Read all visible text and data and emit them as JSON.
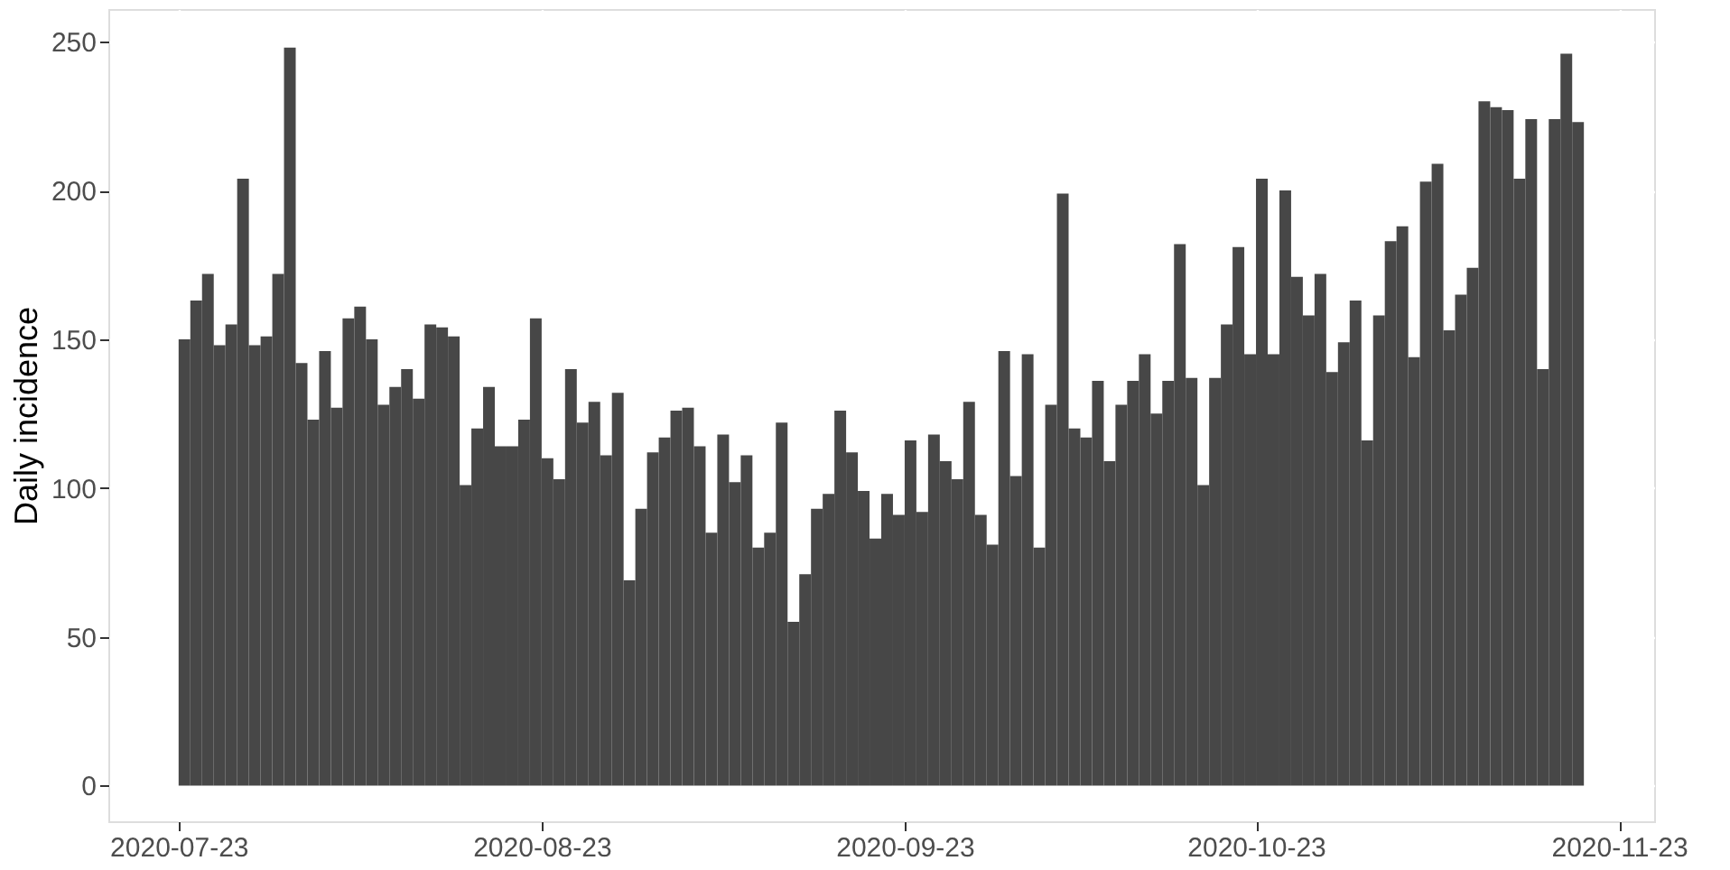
{
  "chart_data": {
    "type": "bar",
    "ylabel": "Daily incidence",
    "color": "#474747",
    "x": [
      "2020-07-23",
      "2020-07-24",
      "2020-07-25",
      "2020-07-26",
      "2020-07-27",
      "2020-07-28",
      "2020-07-29",
      "2020-07-30",
      "2020-07-31",
      "2020-08-01",
      "2020-08-02",
      "2020-08-03",
      "2020-08-04",
      "2020-08-05",
      "2020-08-06",
      "2020-08-07",
      "2020-08-08",
      "2020-08-09",
      "2020-08-10",
      "2020-08-11",
      "2020-08-12",
      "2020-08-13",
      "2020-08-14",
      "2020-08-15",
      "2020-08-16",
      "2020-08-17",
      "2020-08-18",
      "2020-08-19",
      "2020-08-20",
      "2020-08-21",
      "2020-08-22",
      "2020-08-23",
      "2020-08-24",
      "2020-08-25",
      "2020-08-26",
      "2020-08-27",
      "2020-08-28",
      "2020-08-29",
      "2020-08-30",
      "2020-08-31",
      "2020-09-01",
      "2020-09-02",
      "2020-09-03",
      "2020-09-04",
      "2020-09-05",
      "2020-09-06",
      "2020-09-07",
      "2020-09-08",
      "2020-09-09",
      "2020-09-10",
      "2020-09-11",
      "2020-09-12",
      "2020-09-13",
      "2020-09-14",
      "2020-09-15",
      "2020-09-16",
      "2020-09-17",
      "2020-09-18",
      "2020-09-19",
      "2020-09-20",
      "2020-09-21",
      "2020-09-22",
      "2020-09-23",
      "2020-09-24",
      "2020-09-25",
      "2020-09-26",
      "2020-09-27",
      "2020-09-28",
      "2020-09-29",
      "2020-09-30",
      "2020-10-01",
      "2020-10-02",
      "2020-10-03",
      "2020-10-04",
      "2020-10-05",
      "2020-10-06",
      "2020-10-07",
      "2020-10-08",
      "2020-10-09",
      "2020-10-10",
      "2020-10-11",
      "2020-10-12",
      "2020-10-13",
      "2020-10-14",
      "2020-10-15",
      "2020-10-16",
      "2020-10-17",
      "2020-10-18",
      "2020-10-19",
      "2020-10-20",
      "2020-10-21",
      "2020-10-22",
      "2020-10-23",
      "2020-10-24",
      "2020-10-25",
      "2020-10-26",
      "2020-10-27",
      "2020-10-28",
      "2020-10-29",
      "2020-10-30",
      "2020-10-31",
      "2020-11-01",
      "2020-11-02",
      "2020-11-03",
      "2020-11-04",
      "2020-11-05",
      "2020-11-06",
      "2020-11-07",
      "2020-11-08",
      "2020-11-09",
      "2020-11-10",
      "2020-11-11",
      "2020-11-12",
      "2020-11-13",
      "2020-11-14",
      "2020-11-15",
      "2020-11-16",
      "2020-11-17",
      "2020-11-18",
      "2020-11-19"
    ],
    "values": [
      150,
      163,
      172,
      148,
      155,
      204,
      148,
      151,
      172,
      248,
      142,
      123,
      146,
      127,
      157,
      161,
      150,
      128,
      134,
      140,
      130,
      155,
      154,
      151,
      101,
      120,
      134,
      114,
      114,
      123,
      157,
      110,
      103,
      140,
      122,
      129,
      111,
      132,
      69,
      93,
      112,
      117,
      126,
      127,
      114,
      85,
      118,
      102,
      111,
      80,
      85,
      122,
      55,
      71,
      93,
      98,
      126,
      112,
      99,
      83,
      98,
      91,
      116,
      92,
      118,
      109,
      103,
      129,
      91,
      81,
      146,
      104,
      145,
      80,
      128,
      199,
      120,
      117,
      136,
      109,
      128,
      136,
      145,
      125,
      136,
      182,
      137,
      101,
      137,
      155,
      181,
      145,
      204,
      145,
      200,
      171,
      158,
      172,
      139,
      149,
      163,
      116,
      158,
      183,
      188,
      144,
      203,
      209,
      153,
      165,
      174,
      230,
      228,
      227,
      204,
      224,
      140,
      224,
      246,
      223
    ],
    "xlim": [
      "2020-07-17",
      "2020-11-26"
    ],
    "xticks": [
      "2020-07-23",
      "2020-08-23",
      "2020-09-23",
      "2020-10-23",
      "2020-11-23"
    ],
    "ylim": [
      -12,
      261
    ],
    "yticks": [
      0,
      50,
      100,
      150,
      200,
      250
    ],
    "grid": true
  }
}
